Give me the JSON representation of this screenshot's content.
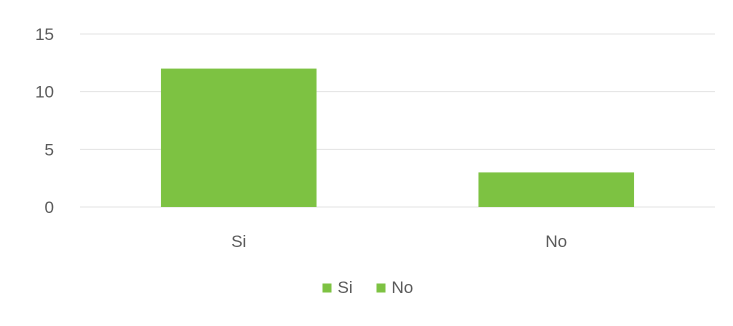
{
  "chart_data": {
    "type": "bar",
    "categories": [
      "Si",
      "No"
    ],
    "values": [
      12,
      3
    ],
    "ylim": [
      0,
      15
    ],
    "yticks": [
      0,
      5,
      10,
      15
    ],
    "grid": true,
    "legend_position": "bottom",
    "legend": [
      {
        "label": "Si",
        "color": "#7dc242"
      },
      {
        "label": "No",
        "color": "#7dc242"
      }
    ],
    "bar_color": "#7dc242"
  }
}
